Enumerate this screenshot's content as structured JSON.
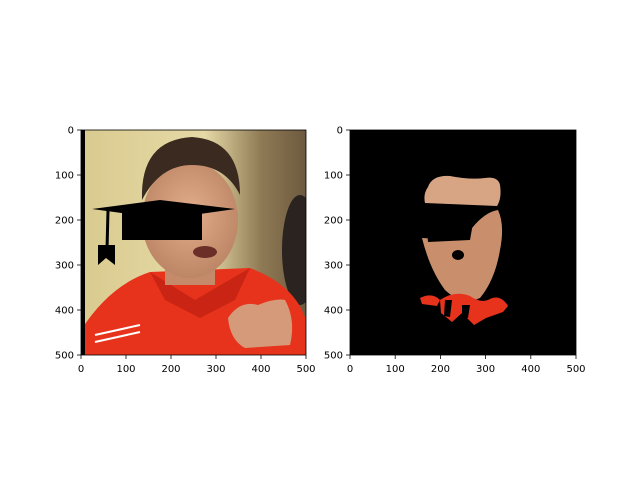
{
  "chart_data": [
    {
      "type": "image",
      "panel": "left",
      "content": "photo of a man in a red shirt with a black graduation-cap overlay",
      "xlim": [
        0,
        500
      ],
      "ylim": [
        500,
        0
      ],
      "xticks": [
        "0",
        "100",
        "200",
        "300",
        "400",
        "500"
      ],
      "yticks": [
        "0",
        "100",
        "200",
        "300",
        "400",
        "500"
      ]
    },
    {
      "type": "image",
      "panel": "right",
      "content": "segmentation mask: face/skin region visible on black background, occluded by cap shape",
      "xlim": [
        0,
        500
      ],
      "ylim": [
        500,
        0
      ],
      "xticks": [
        "0",
        "100",
        "200",
        "300",
        "400",
        "500"
      ],
      "yticks": [
        "0",
        "100",
        "200",
        "300",
        "400",
        "500"
      ]
    }
  ],
  "colors": {
    "shirt_red": "#e8331c",
    "skin": "#d9a27f",
    "background_beige": "#d8c78e",
    "mask_background": "#000000"
  }
}
